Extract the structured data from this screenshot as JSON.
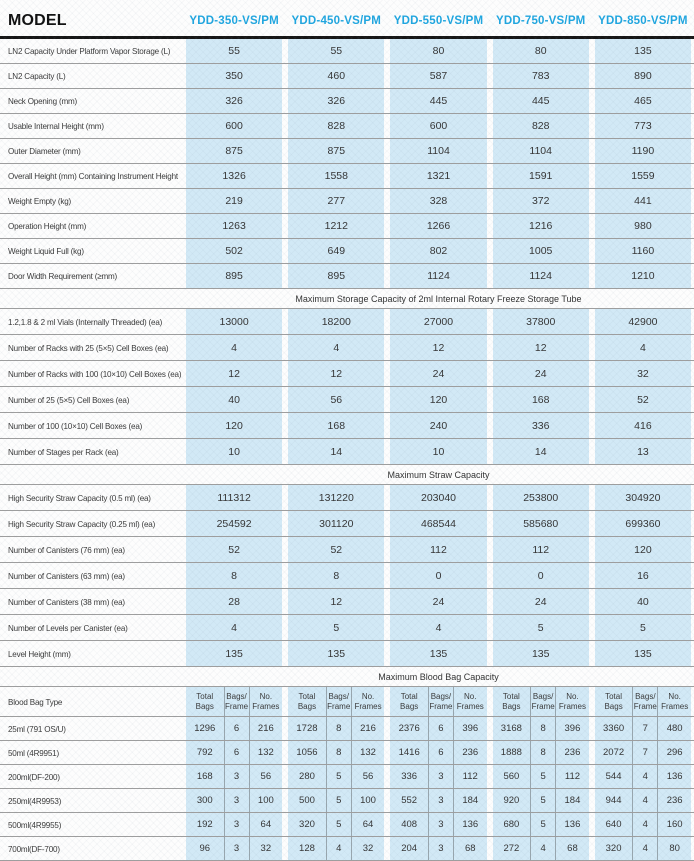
{
  "header": {
    "model_label": "MODEL",
    "models": [
      "YDD-350-VS/PM",
      "YDD-450-VS/PM",
      "YDD-550-VS/PM",
      "YDD-750-VS/PM",
      "YDD-850-VS/PM"
    ]
  },
  "sections": [
    {
      "title": null,
      "rows": [
        {
          "label": "LN2 Capacity Under Platform Vapor Storage (L)",
          "values": [
            "55",
            "55",
            "80",
            "80",
            "135"
          ]
        },
        {
          "label": "LN2 Capacity (L)",
          "values": [
            "350",
            "460",
            "587",
            "783",
            "890"
          ]
        },
        {
          "label": "Neck Opening (mm)",
          "values": [
            "326",
            "326",
            "445",
            "445",
            "465"
          ]
        },
        {
          "label": "Usable Internal Height (mm)",
          "values": [
            "600",
            "828",
            "600",
            "828",
            "773"
          ]
        },
        {
          "label": "Outer Diameter (mm)",
          "values": [
            "875",
            "875",
            "1104",
            "1104",
            "1190"
          ]
        },
        {
          "label": "Overall Height (mm) Containing Instrument Height",
          "values": [
            "1326",
            "1558",
            "1321",
            "1591",
            "1559"
          ]
        },
        {
          "label": "Weight Empty (kg)",
          "values": [
            "219",
            "277",
            "328",
            "372",
            "441"
          ]
        },
        {
          "label": "Operation Height (mm)",
          "values": [
            "1263",
            "1212",
            "1266",
            "1216",
            "980"
          ]
        },
        {
          "label": "Weight Liquid Full (kg)",
          "values": [
            "502",
            "649",
            "802",
            "1005",
            "1160"
          ]
        },
        {
          "label": "Door Width Requirement (≥mm)",
          "values": [
            "895",
            "895",
            "1124",
            "1124",
            "1210"
          ]
        }
      ]
    },
    {
      "title": "Maximum Storage Capacity of 2ml Internal Rotary Freeze Storage Tube",
      "rows": [
        {
          "label": "1.2,1.8 & 2 ml Vials (Internally Threaded) (ea)",
          "values": [
            "13000",
            "18200",
            "27000",
            "37800",
            "42900"
          ]
        },
        {
          "label": "Number of Racks with 25 (5×5) Cell Boxes (ea)",
          "values": [
            "4",
            "4",
            "12",
            "12",
            "4"
          ]
        },
        {
          "label": "Number of Racks with 100 (10×10) Cell Boxes (ea)",
          "values": [
            "12",
            "12",
            "24",
            "24",
            "32"
          ]
        },
        {
          "label": "Number of 25 (5×5) Cell Boxes (ea)",
          "values": [
            "40",
            "56",
            "120",
            "168",
            "52"
          ]
        },
        {
          "label": "Number of 100 (10×10) Cell Boxes (ea)",
          "values": [
            "120",
            "168",
            "240",
            "336",
            "416"
          ]
        },
        {
          "label": "Number of Stages per Rack (ea)",
          "values": [
            "10",
            "14",
            "10",
            "14",
            "13"
          ]
        }
      ]
    },
    {
      "title": "Maximum Straw Capacity",
      "rows": [
        {
          "label": "High Security Straw Capacity (0.5 ml) (ea)",
          "values": [
            "111312",
            "131220",
            "203040",
            "253800",
            "304920"
          ]
        },
        {
          "label": "High Security Straw Capacity (0.25 ml) (ea)",
          "values": [
            "254592",
            "301120",
            "468544",
            "585680",
            "699360"
          ]
        },
        {
          "label": "Number of Canisters (76 mm) (ea)",
          "values": [
            "52",
            "52",
            "112",
            "112",
            "120"
          ]
        },
        {
          "label": "Number of Canisters (63 mm) (ea)",
          "values": [
            "8",
            "8",
            "0",
            "0",
            "16"
          ]
        },
        {
          "label": "Number of Canisters (38 mm) (ea)",
          "values": [
            "28",
            "12",
            "24",
            "24",
            "40"
          ]
        },
        {
          "label": "Number of Levels per Canister (ea)",
          "values": [
            "4",
            "5",
            "4",
            "5",
            "5"
          ]
        },
        {
          "label": "Level Height (mm)",
          "values": [
            "135",
            "135",
            "135",
            "135",
            "135"
          ]
        }
      ]
    }
  ],
  "blood_bag": {
    "title": "Maximum Blood Bag Capacity",
    "type_label": "Blood Bag Type",
    "sub_headers": [
      "Total\nBags",
      "Bags/\nFrame",
      "No.\nFrames"
    ],
    "rows": [
      {
        "label": "25ml  (791 OS/U)",
        "groups": [
          [
            "1296",
            "6",
            "216"
          ],
          [
            "1728",
            "8",
            "216"
          ],
          [
            "2376",
            "6",
            "396"
          ],
          [
            "3168",
            "8",
            "396"
          ],
          [
            "3360",
            "7",
            "480"
          ]
        ]
      },
      {
        "label": "50ml  (4R9951)",
        "groups": [
          [
            "792",
            "6",
            "132"
          ],
          [
            "1056",
            "8",
            "132"
          ],
          [
            "1416",
            "6",
            "236"
          ],
          [
            "1888",
            "8",
            "236"
          ],
          [
            "2072",
            "7",
            "296"
          ]
        ]
      },
      {
        "label": "200ml(DF-200)",
        "groups": [
          [
            "168",
            "3",
            "56"
          ],
          [
            "280",
            "5",
            "56"
          ],
          [
            "336",
            "3",
            "112"
          ],
          [
            "560",
            "5",
            "112"
          ],
          [
            "544",
            "4",
            "136"
          ]
        ]
      },
      {
        "label": "250ml(4R9953)",
        "groups": [
          [
            "300",
            "3",
            "100"
          ],
          [
            "500",
            "5",
            "100"
          ],
          [
            "552",
            "3",
            "184"
          ],
          [
            "920",
            "5",
            "184"
          ],
          [
            "944",
            "4",
            "236"
          ]
        ]
      },
      {
        "label": "500ml(4R9955)",
        "groups": [
          [
            "192",
            "3",
            "64"
          ],
          [
            "320",
            "5",
            "64"
          ],
          [
            "408",
            "3",
            "136"
          ],
          [
            "680",
            "5",
            "136"
          ],
          [
            "640",
            "4",
            "160"
          ]
        ]
      },
      {
        "label": "700ml(DF-700)",
        "groups": [
          [
            "96",
            "3",
            "32"
          ],
          [
            "128",
            "4",
            "32"
          ],
          [
            "204",
            "3",
            "68"
          ],
          [
            "272",
            "4",
            "68"
          ],
          [
            "320",
            "4",
            "80"
          ]
        ]
      }
    ]
  },
  "colors": {
    "accent": "#1fa6e0",
    "cell_background": "#d2e9f6",
    "row_rule": "#9e9e9e",
    "header_rule": "#161616"
  }
}
